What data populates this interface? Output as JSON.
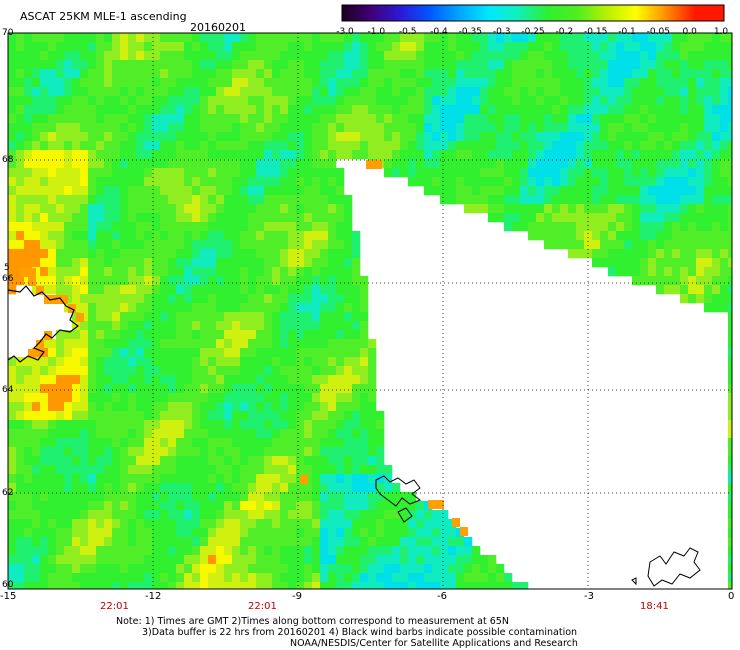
{
  "header": {
    "title": "ASCAT 25KM MLE-1 ascending",
    "date": "20160201"
  },
  "colorbar": {
    "labels": [
      "-3.0",
      "-1.0",
      "-0.5",
      "-0.4",
      "-0.35",
      "-0.3",
      "-0.25",
      "-0.2",
      "-0.15",
      "-0.1",
      "-0.05",
      "0.0",
      "1.0"
    ],
    "colors": [
      "#1a0020",
      "#40007a",
      "#2a1ad8",
      "#0058ff",
      "#00a8ff",
      "#00e8ff",
      "#10f0b8",
      "#2ef030",
      "#50ee20",
      "#b8f000",
      "#ffff00",
      "#ff9000",
      "#ff1800"
    ]
  },
  "map": {
    "lat_labels": [
      "70",
      "68",
      "66",
      "64",
      "62",
      "60"
    ],
    "lon_labels": [
      "-15",
      "-12",
      "-9",
      "-6",
      "-3",
      "0"
    ],
    "time_labels": [
      "22:01",
      "22:01",
      "18:41"
    ],
    "stray_label": "5"
  },
  "notes": {
    "line1": "Note: 1) Times are GMT 2)Times along bottom correspond to measurement at 65N",
    "line2": "3)Data buffer is 22 hrs from 20160201 4) Black wind barbs indicate possible contamination",
    "line3": "NOAA/NESDIS/Center for Satellite Applications and Research"
  }
}
